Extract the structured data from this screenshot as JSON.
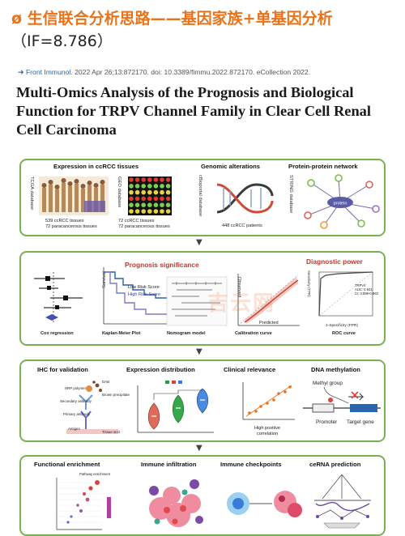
{
  "header": {
    "line1": "ø 生信联合分析思路——基因家族+单基因分析",
    "line2": "（IF=8.786）"
  },
  "citation": {
    "journal": "Front Immunol.",
    "rest": "2022 Apr 26;13:872170. doi: 10.3389/fimmu.2022.872170. eCollection 2022."
  },
  "paper_title": {
    "line1": "Multi-Omics Analysis of the Prognosis and Biological",
    "line2": "Function for TRPV Channel Family in Clear Cell Renal",
    "line3": "Cell Carcinoma"
  },
  "panel1": {
    "expression_title": "Expression in ccRCC tissues",
    "tcga_db": "TCGA database",
    "tcga_caption": "539 ccRCC tissues\n72  paracancerous tissues",
    "geo_db": "GEO database",
    "geo_caption": "72 ccRCC tissues\n72  paracancerous tissues",
    "genomic_title": "Genomic alterations",
    "cbio_db": "cBioportal database",
    "cbio_caption": "448 ccRCC patients",
    "ppi_title": "Protein-protein network",
    "string_db": "STRING database",
    "ppi_center": "protein"
  },
  "panel2": {
    "prognosis_title": "Prognosis significance",
    "diagnostic_title": "Diagnostic power",
    "cox": "Cox regression",
    "km": "Kaplan-Meier Plot",
    "km_low": "Low Risk Score",
    "km_high": "High Risk Score",
    "km_y": "Survival",
    "nomogram": "Nomogram model",
    "calibration": "Calibration curve",
    "observed": "Observed",
    "predicted": "Predicted",
    "roc": "ROC curve",
    "roc_x": "1-Specificity (FPR)",
    "roc_y": "Sensitivity (TPR)",
    "roc_legend": "TRPV4\nAUC: 0.931\nCI: 0.899-0.963"
  },
  "panel3": {
    "ihc_title": "IHC for validation",
    "ihc_labels": [
      "DAB",
      "HRP polymer",
      "Secondary antibody",
      "Brown precipitate",
      "Primary antibody",
      "Antigen",
      "Tissue sect"
    ],
    "expr_title": "Expression distribution",
    "clinical_title": "Clinical relevance",
    "clinical_caption": "High positive\ncorrelation",
    "dna_title": "DNA methylation",
    "methyl_group": "Methyl group",
    "promoter": "Promoter",
    "target_gene": "Target gene"
  },
  "panel4": {
    "functional_title": "Functional enrichment",
    "immune_inf_title": "Immune infiltration",
    "immune_chk_title": "Immune checkpoints",
    "cerna_title": "ceRNA prediction",
    "pathway_label": "Pathway enrichment"
  },
  "watermark": "吉云网",
  "colors": {
    "heading": "#e8731a",
    "panel_border": "#79b051",
    "prognosis_red": "#c0392b",
    "journal_blue": "#2a64b0"
  },
  "icons": [
    "link-arrow-icon",
    "down-arrow-icon",
    "dna-helix-icon",
    "protein-network-icon",
    "violin-plot-icon",
    "promoter-gene-icon",
    "immune-cell-icon",
    "checkpoint-binding-icon",
    "rna-network-icon"
  ]
}
